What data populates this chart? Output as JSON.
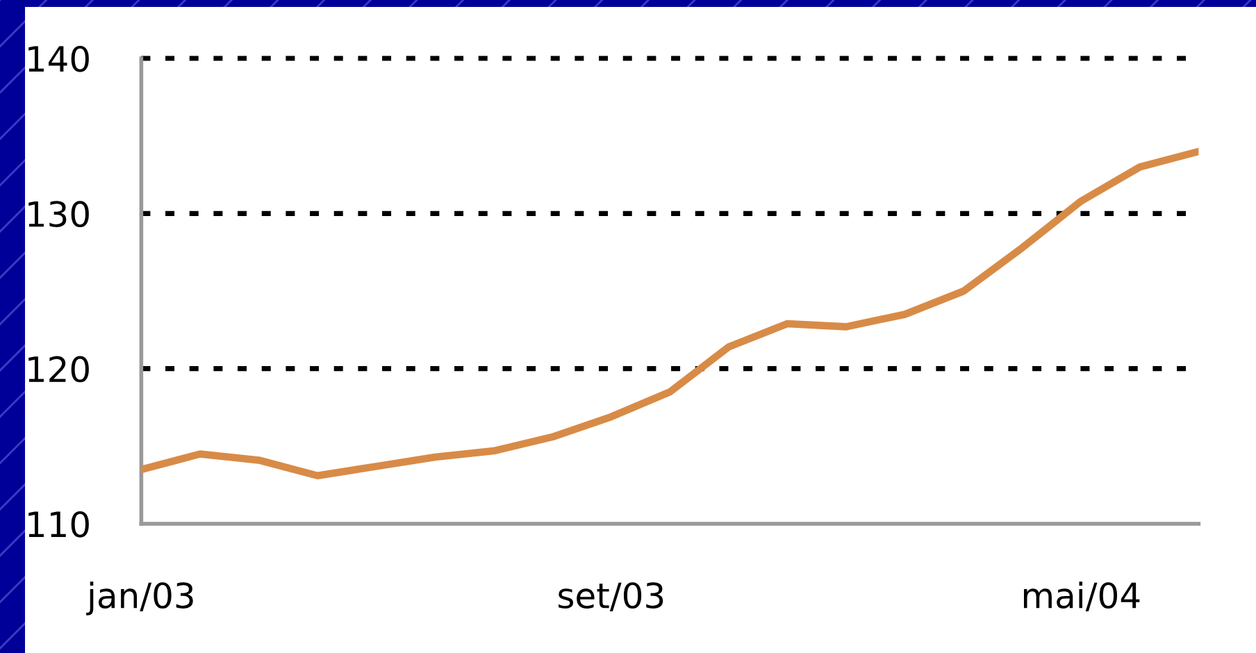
{
  "chart_data": {
    "type": "line",
    "categories": [
      "jan/03",
      null,
      null,
      null,
      null,
      null,
      null,
      null,
      "set/03",
      null,
      null,
      null,
      null,
      null,
      null,
      null,
      "mai/04",
      null,
      null
    ],
    "series": [
      {
        "color": "#d88b47",
        "values": [
          113.5,
          114.5,
          114.1,
          113.1,
          113.7,
          114.3,
          114.7,
          115.6,
          116.9,
          118.5,
          121.4,
          122.9,
          122.7,
          123.5,
          125.0,
          127.8,
          130.8,
          133.0,
          134.0
        ]
      }
    ],
    "ylim": [
      110,
      140
    ],
    "yticks": [
      110,
      120,
      130,
      140
    ],
    "grid": "y"
  }
}
